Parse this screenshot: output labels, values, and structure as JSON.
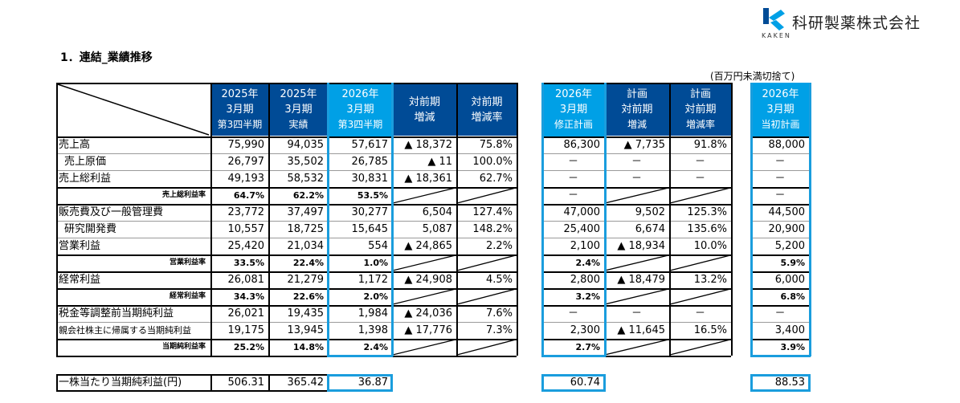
{
  "company": {
    "logo_text": "KAKEN",
    "name": "科研製薬株式会社",
    "brand_colors": {
      "dark_blue": "#004b96",
      "light_blue": "#00a0e6"
    }
  },
  "section_title": "1．連結_業績推移",
  "unit_note": "(百万円未満切捨て)",
  "table": {
    "columns": [
      {
        "key": "fy2025_q3",
        "lines": [
          "2025年",
          "3月期",
          "第3四半期"
        ],
        "style": "dark"
      },
      {
        "key": "fy2025_actual",
        "lines": [
          "2025年",
          "3月期",
          "実績"
        ],
        "style": "dark"
      },
      {
        "key": "fy2026_q3",
        "lines": [
          "2026年",
          "3月期",
          "第3四半期"
        ],
        "style": "light"
      },
      {
        "key": "yoy_change",
        "lines": [
          "対前期",
          "増減"
        ],
        "style": "dark"
      },
      {
        "key": "yoy_rate",
        "lines": [
          "対前期",
          "増減率"
        ],
        "style": "dark"
      },
      {
        "key": "fy2026_revised_plan",
        "lines": [
          "2026年",
          "3月期",
          "修正計画"
        ],
        "style": "light"
      },
      {
        "key": "plan_yoy_change",
        "lines": [
          "計画",
          "対前期",
          "増減"
        ],
        "style": "dark"
      },
      {
        "key": "plan_yoy_rate",
        "lines": [
          "計画",
          "対前期",
          "増減率"
        ],
        "style": "dark"
      },
      {
        "key": "fy2026_initial_plan",
        "lines": [
          "2026年",
          "3月期",
          "当初計画"
        ],
        "style": "light"
      }
    ],
    "rows": [
      {
        "label": "売上高",
        "type": "main",
        "values": [
          "75,990",
          "94,035",
          "57,617",
          "▲ 18,372",
          "75.8%",
          "86,300",
          "▲ 7,735",
          "91.8%",
          "88,000"
        ]
      },
      {
        "label": "売上原価",
        "type": "indent",
        "values": [
          "26,797",
          "35,502",
          "26,785",
          "▲ 11",
          "100.0%",
          "－",
          "－",
          "－",
          "－"
        ]
      },
      {
        "label": "売上総利益",
        "type": "main",
        "values": [
          "49,193",
          "58,532",
          "30,831",
          "▲ 18,361",
          "62.7%",
          "－",
          "－",
          "－",
          "－"
        ]
      },
      {
        "label": "売上総利益率",
        "type": "ratio",
        "values": [
          "64.7%",
          "62.2%",
          "53.5%",
          "",
          "",
          "－",
          "",
          "",
          "－"
        ]
      },
      {
        "label": "販売費及び一般管理費",
        "type": "main",
        "values": [
          "23,772",
          "37,497",
          "30,277",
          "6,504",
          "127.4%",
          "47,000",
          "9,502",
          "125.3%",
          "44,500"
        ]
      },
      {
        "label": "研究開発費",
        "type": "indent",
        "values": [
          "10,557",
          "18,725",
          "15,645",
          "5,087",
          "148.2%",
          "25,400",
          "6,674",
          "135.6%",
          "20,900"
        ]
      },
      {
        "label": "営業利益",
        "type": "main",
        "values": [
          "25,420",
          "21,034",
          "554",
          "▲ 24,865",
          "2.2%",
          "2,100",
          "▲ 18,934",
          "10.0%",
          "5,200"
        ]
      },
      {
        "label": "営業利益率",
        "type": "ratio",
        "values": [
          "33.5%",
          "22.4%",
          "1.0%",
          "",
          "",
          "2.4%",
          "",
          "",
          "5.9%"
        ]
      },
      {
        "label": "経常利益",
        "type": "main",
        "values": [
          "26,081",
          "21,279",
          "1,172",
          "▲ 24,908",
          "4.5%",
          "2,800",
          "▲ 18,479",
          "13.2%",
          "6,000"
        ]
      },
      {
        "label": "経常利益率",
        "type": "ratio",
        "values": [
          "34.3%",
          "22.6%",
          "2.0%",
          "",
          "",
          "3.2%",
          "",
          "",
          "6.8%"
        ]
      },
      {
        "label": "税金等調整前当期純利益",
        "type": "main",
        "values": [
          "26,021",
          "19,435",
          "1,984",
          "▲ 24,036",
          "7.6%",
          "－",
          "－",
          "－",
          "－"
        ]
      },
      {
        "label": "親会社株主に帰属する当期純利益",
        "type": "small",
        "values": [
          "19,175",
          "13,945",
          "1,398",
          "▲ 17,776",
          "7.3%",
          "2,300",
          "▲ 11,645",
          "16.5%",
          "3,400"
        ]
      },
      {
        "label": "当期純利益率",
        "type": "ratio",
        "values": [
          "25.2%",
          "14.8%",
          "2.4%",
          "",
          "",
          "2.7%",
          "",
          "",
          "3.9%"
        ]
      }
    ],
    "eps_row": {
      "label": "一株当たり当期純利益(円)",
      "values": [
        "506.31",
        "365.42",
        "36.87",
        "60.74",
        "88.53"
      ]
    }
  }
}
